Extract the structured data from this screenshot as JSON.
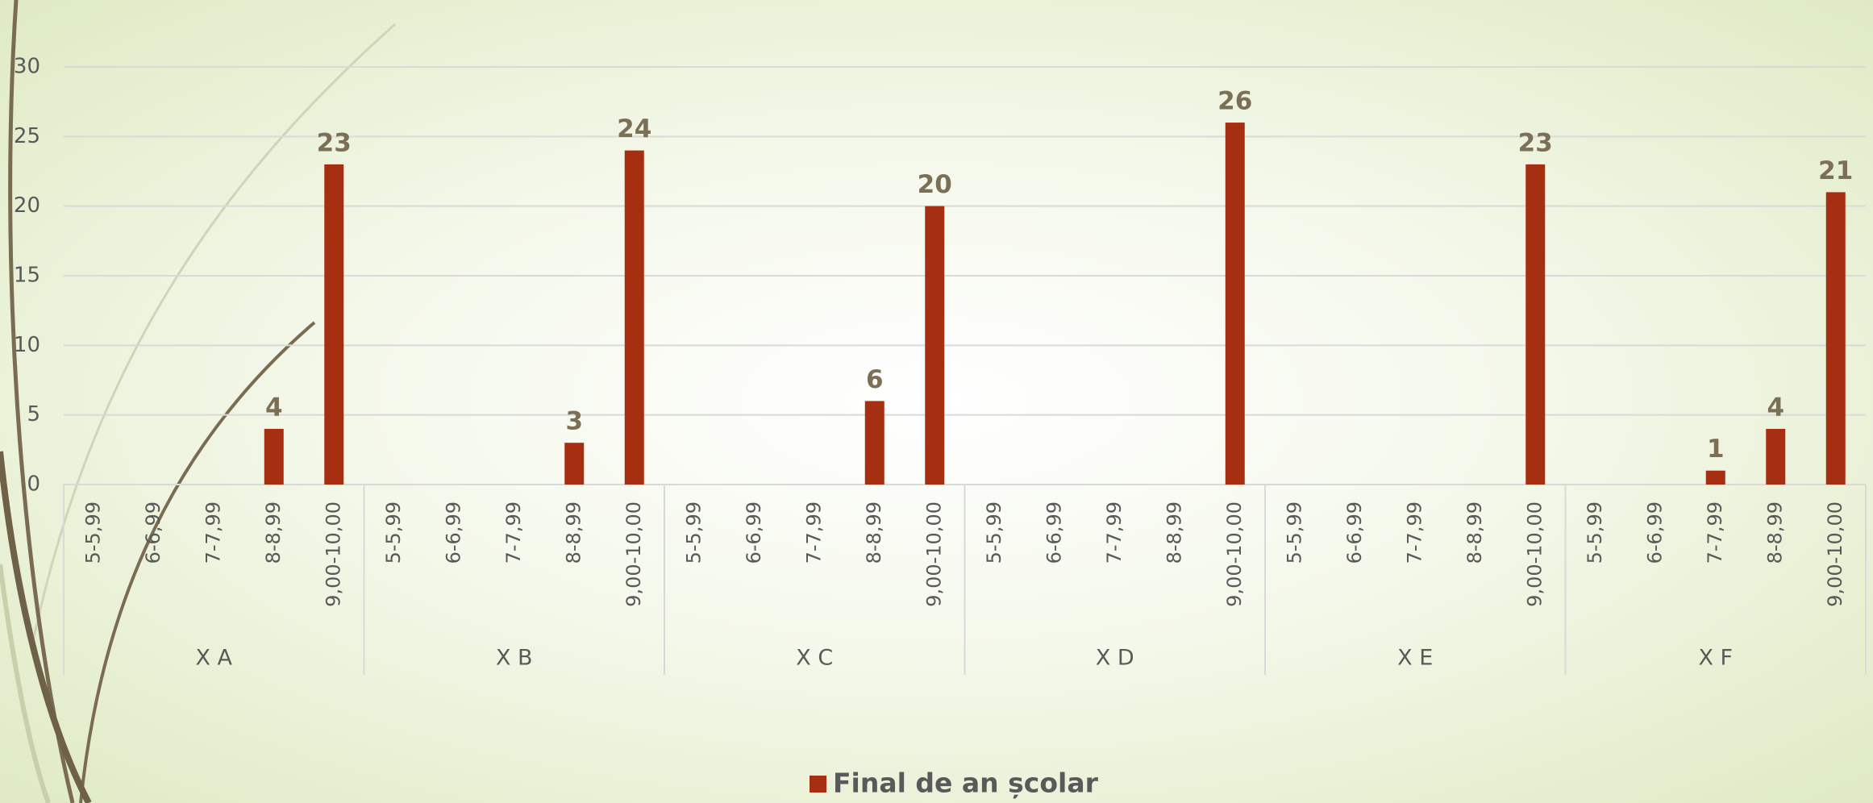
{
  "chart_data": {
    "type": "bar",
    "groups": [
      "X A",
      "X B",
      "X C",
      "X D",
      "X E",
      "X F"
    ],
    "categories": [
      "5-5,99",
      "6-6,99",
      "7-7,99",
      "8-8,99",
      "9,00-10,00",
      "5-5,99",
      "6-6,99",
      "7-7,99",
      "8-8,99",
      "9,00-10,00",
      "5-5,99",
      "6-6,99",
      "7-7,99",
      "8-8,99",
      "9,00-10,00",
      "5-5,99",
      "6-6,99",
      "7-7,99",
      "8-8,99",
      "9,00-10,00",
      "5-5,99",
      "6-6,99",
      "7-7,99",
      "8-8,99",
      "9,00-10,00",
      "5-5,99",
      "6-6,99",
      "7-7,99",
      "8-8,99",
      "9,00-10,00"
    ],
    "series": [
      {
        "name": "Final de an școlar",
        "color": "#a52f10",
        "values": [
          null,
          null,
          null,
          4,
          23,
          null,
          null,
          null,
          3,
          24,
          null,
          null,
          null,
          6,
          20,
          null,
          null,
          null,
          null,
          26,
          null,
          null,
          null,
          null,
          23,
          null,
          null,
          1,
          4,
          21
        ]
      }
    ],
    "ylim": [
      0,
      30
    ],
    "yticks": [
      0,
      5,
      10,
      15,
      20,
      25,
      30
    ],
    "grid": true,
    "legend": "bottom"
  }
}
